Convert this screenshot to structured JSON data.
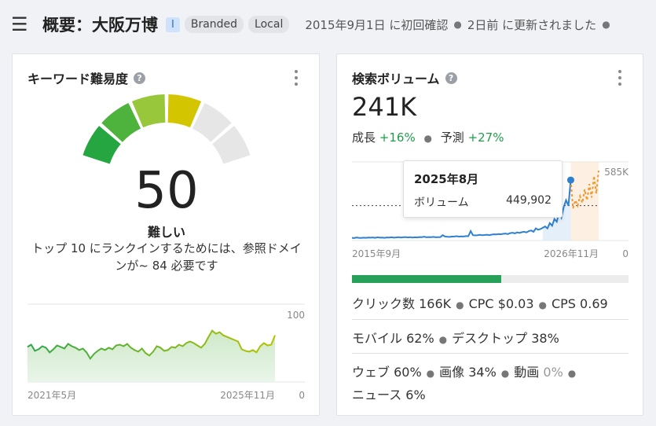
{
  "header": {
    "title": "概要：大阪万博",
    "badge_i": "I",
    "badges": [
      "Branded",
      "Local"
    ],
    "first_seen": "2015年9月1日 に初回確認",
    "updated": "2日前 に更新されました"
  },
  "kd_card": {
    "title": "キーワード難易度",
    "value": "50",
    "label": "難しい",
    "description": "トップ 10 にランクインするためには、参照ドメインが~ 84 必要です",
    "chart_data": {
      "type": "area",
      "x_start_label": "2021年5月",
      "x_end_label": "2025年11月",
      "y_max_label": "100",
      "y_min_label": "0",
      "ylim": [
        0,
        100
      ],
      "values": [
        45,
        48,
        40,
        42,
        46,
        44,
        38,
        42,
        47,
        45,
        43,
        49,
        46,
        44,
        41,
        43,
        38,
        30,
        36,
        40,
        43,
        41,
        44,
        42,
        47,
        48,
        46,
        49,
        44,
        41,
        39,
        43,
        37,
        34,
        39,
        46,
        44,
        40,
        41,
        45,
        44,
        48,
        46,
        50,
        52,
        50,
        47,
        44,
        49,
        58,
        66,
        62,
        64,
        60,
        58,
        56,
        54,
        52,
        42,
        40,
        39,
        41,
        38,
        46,
        50,
        47,
        48,
        60
      ]
    },
    "gauge_segments": [
      "#26a641",
      "#4db33c",
      "#98c73b",
      "#d3c500",
      "#e6e6e6",
      "#e6e6e6"
    ]
  },
  "vol_card": {
    "title": "検索ボリューム",
    "value": "241K",
    "growth_label": "成長",
    "growth_value": "+16%",
    "forecast_label": "予測",
    "forecast_value": "+27%",
    "tooltip": {
      "date": "2025年8月",
      "label": "ボリューム",
      "value": "449,902"
    },
    "chart_data": {
      "type": "line",
      "x_start_label": "2015年9月",
      "x_end_label": "2026年11月",
      "y_max_label": "585K",
      "y_min_label": "0",
      "ylim": [
        0,
        585000
      ],
      "values": [
        20000,
        18000,
        22000,
        20000,
        19000,
        21000,
        20000,
        22000,
        21000,
        23000,
        20000,
        24000,
        21000,
        22000,
        20000,
        23000,
        22000,
        24000,
        21000,
        23000,
        25000,
        22000,
        24000,
        26000,
        23000,
        25000,
        22000,
        24000,
        23000,
        26000,
        25000,
        28000,
        24000,
        26000,
        25000,
        27000,
        24000,
        25000,
        26000,
        40000,
        30000,
        28000,
        27000,
        29000,
        30000,
        32000,
        29000,
        31000,
        30000,
        33000,
        32000,
        70000,
        40000,
        38000,
        40000,
        42000,
        39000,
        41000,
        43000,
        40000,
        44000,
        46000,
        45000,
        48000,
        47000,
        50000,
        52000,
        48000,
        55000,
        58000,
        53000,
        60000,
        57000,
        62000,
        65000,
        60000,
        70000,
        75000,
        65000,
        90000,
        80000,
        85000,
        95000,
        105000,
        90000,
        130000,
        110000,
        160000,
        140000,
        210000,
        170000,
        250000,
        300000,
        260000,
        449902
      ],
      "forecast_values": [
        449902,
        240000,
        300000,
        260000,
        330000,
        280000,
        380000,
        300000,
        420000,
        320000,
        480000,
        350000,
        520000
      ],
      "reference_value": 260000
    },
    "progress": 0.54,
    "clicks_line": [
      "クリック数 166K",
      "CPC $0.03",
      "CPS 0.69"
    ],
    "device_line": [
      "モバイル 62%",
      "デスクトップ 38%"
    ],
    "type_line": [
      "ウェブ 60%",
      "画像 34%",
      "動画",
      "0%",
      "ニュース 6%"
    ],
    "colors": {
      "line": "#2f80d1",
      "forecast": "#f0962b",
      "accent_green": "#1e9e4a"
    }
  }
}
